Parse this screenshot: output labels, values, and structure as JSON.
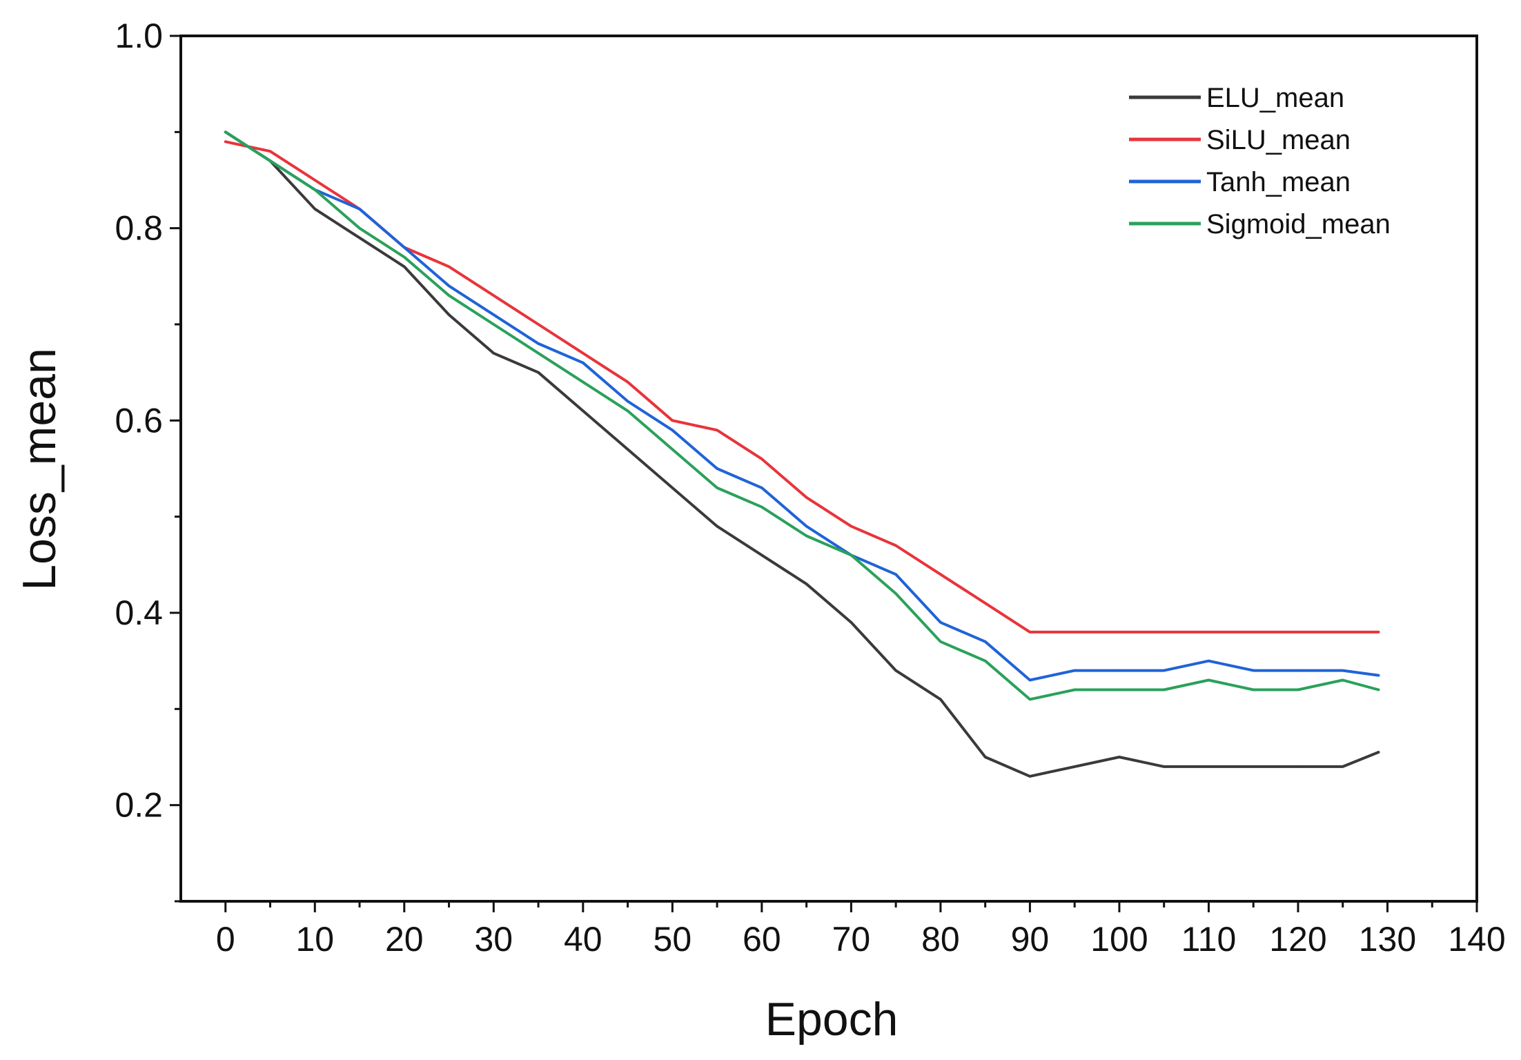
{
  "chart_data": {
    "type": "line",
    "title": "",
    "xlabel": "Epoch",
    "ylabel": "Loss_mean",
    "xlim": [
      -5,
      140
    ],
    "ylim": [
      0.1,
      1.0
    ],
    "x_ticks": [
      0,
      10,
      20,
      30,
      40,
      50,
      60,
      70,
      80,
      90,
      100,
      110,
      120,
      130,
      140
    ],
    "x_tick_labels": [
      "0",
      "10",
      "20",
      "30",
      "40",
      "50",
      "60",
      "70",
      "80",
      "90",
      "100",
      "110",
      "120",
      "130",
      "140"
    ],
    "y_ticks": [
      0.2,
      0.4,
      0.6,
      0.8,
      1.0
    ],
    "y_tick_labels": [
      "0.2",
      "0.4",
      "0.6",
      "0.8",
      "1.0"
    ],
    "grid": false,
    "legend_position": "top-right",
    "x": [
      0,
      5,
      10,
      15,
      20,
      25,
      30,
      35,
      40,
      45,
      50,
      55,
      60,
      65,
      70,
      75,
      80,
      85,
      90,
      95,
      100,
      105,
      110,
      115,
      120,
      125,
      129
    ],
    "series": [
      {
        "name": "ELU_mean",
        "color": "#3a3a3a",
        "values": [
          0.9,
          0.87,
          0.82,
          0.79,
          0.76,
          0.71,
          0.67,
          0.65,
          0.61,
          0.57,
          0.53,
          0.49,
          0.46,
          0.43,
          0.39,
          0.34,
          0.31,
          0.25,
          0.23,
          0.24,
          0.25,
          0.24,
          0.24,
          0.24,
          0.24,
          0.24,
          0.255
        ]
      },
      {
        "name": "SiLU_mean",
        "color": "#e8343a",
        "values": [
          0.89,
          0.88,
          0.85,
          0.82,
          0.78,
          0.76,
          0.73,
          0.7,
          0.67,
          0.64,
          0.6,
          0.59,
          0.56,
          0.52,
          0.49,
          0.47,
          0.44,
          0.41,
          0.38,
          0.38,
          0.38,
          0.38,
          0.38,
          0.38,
          0.38,
          0.38,
          0.38
        ]
      },
      {
        "name": "Tanh_mean",
        "color": "#1f63d8",
        "values": [
          0.9,
          0.87,
          0.84,
          0.82,
          0.78,
          0.74,
          0.71,
          0.68,
          0.66,
          0.62,
          0.59,
          0.55,
          0.53,
          0.49,
          0.46,
          0.44,
          0.39,
          0.37,
          0.33,
          0.34,
          0.34,
          0.34,
          0.35,
          0.34,
          0.34,
          0.34,
          0.335
        ]
      },
      {
        "name": "Sigmoid_mean",
        "color": "#2aa15a",
        "values": [
          0.9,
          0.87,
          0.84,
          0.8,
          0.77,
          0.73,
          0.7,
          0.67,
          0.64,
          0.61,
          0.57,
          0.53,
          0.51,
          0.48,
          0.46,
          0.42,
          0.37,
          0.35,
          0.31,
          0.32,
          0.32,
          0.32,
          0.33,
          0.32,
          0.32,
          0.33,
          0.32
        ]
      }
    ]
  }
}
